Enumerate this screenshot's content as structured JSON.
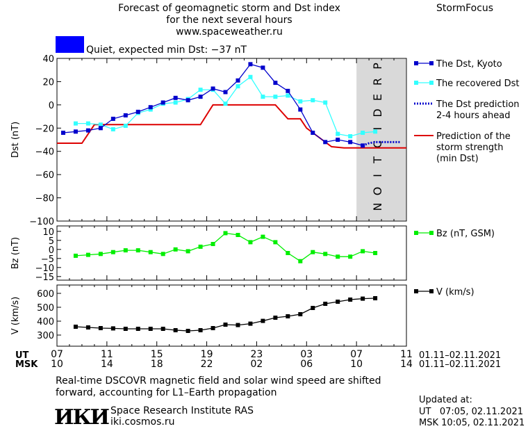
{
  "header": {
    "title_line1": "Forecast of geomagnetic storm and Dst index",
    "title_line2": "for the next several hours",
    "url": "www.spaceweather.ru",
    "brand": "StormFocus"
  },
  "status": {
    "color": "#0000ff",
    "text": "Quiet, expected min Dst: −37 nT"
  },
  "colors": {
    "dst_kyoto": "#0000cc",
    "dst_recovered": "#33ffff",
    "dst_prediction": "#0000cc",
    "storm_strength": "#dd0000",
    "bz": "#00ee00",
    "v": "#000000",
    "prediction_band": "#d9d9d9"
  },
  "chart_data": [
    {
      "type": "line",
      "panel": "dst",
      "ylabel": "Dst (nT)",
      "xlim": [
        7,
        35
      ],
      "ylim": [
        -100,
        40
      ],
      "yticks": [
        40,
        20,
        0,
        -20,
        -40,
        -60,
        -80,
        -100
      ],
      "prediction_label": "PREDICTION",
      "prediction_range": [
        7.0,
        11.0
      ],
      "series": [
        {
          "name": "The Dst, Kyoto",
          "style": "line-square",
          "x": [
            7.5,
            8.5,
            9.5,
            10.5,
            11.5,
            12.5,
            13.5,
            14.5,
            15.5,
            16.5,
            17.5,
            18.5,
            19.5,
            20.5,
            21.5,
            22.5,
            23.5,
            24.5,
            25.5,
            26.5,
            27.5,
            28.5,
            29.5,
            30.5,
            31.5
          ],
          "y": [
            -24,
            -23,
            -22,
            -20,
            -12,
            -9,
            -6,
            -2,
            2,
            6,
            4,
            7,
            14,
            11,
            21,
            35,
            32,
            19,
            12,
            -4,
            -24,
            -32,
            -30,
            -32,
            -35
          ]
        },
        {
          "name": "The recovered Dst",
          "style": "line-square",
          "x": [
            8.5,
            9.5,
            10.5,
            11.5,
            12.5,
            13.5,
            14.5,
            15.5,
            16.5,
            17.5,
            18.5,
            19.5,
            20.5,
            21.5,
            22.5,
            23.5,
            24.5,
            25.5,
            26.5,
            27.5,
            28.5,
            29.5,
            30.5,
            31.5,
            32.5
          ],
          "y": [
            -16,
            -16,
            -17,
            -21,
            -18,
            -7,
            -4,
            1,
            2,
            5,
            13,
            13,
            1,
            16,
            24,
            7,
            7,
            8,
            3,
            4,
            2,
            -25,
            -27,
            -24,
            -23
          ]
        },
        {
          "name": "The Dst prediction\n2-4 hours ahead",
          "style": "dotted",
          "x": [
            31.5,
            32.0,
            32.5,
            33.0,
            33.5,
            34.0,
            34.5
          ],
          "y": [
            -35,
            -33,
            -32,
            -32,
            -32,
            -32,
            -32
          ]
        },
        {
          "name": "Prediction of the\nstorm strength\n(min Dst)",
          "style": "step",
          "x": [
            7.0,
            9.0,
            10.0,
            18.5,
            19.5,
            24.5,
            25.5,
            26.5,
            27.0,
            29.0,
            30.0,
            35.0
          ],
          "y": [
            -33,
            -33,
            -17,
            -17,
            0,
            0,
            -12,
            -12,
            -20,
            -36,
            -37,
            -37
          ]
        }
      ]
    },
    {
      "type": "line",
      "panel": "bz",
      "ylabel": "Bz (nT)",
      "ylim": [
        -17,
        13
      ],
      "yticks": [
        10,
        5,
        0,
        -5,
        -10,
        -15
      ],
      "series": [
        {
          "name": "Bz (nT, GSM)",
          "style": "line-square",
          "x": [
            8.5,
            9.5,
            10.5,
            11.5,
            12.5,
            13.5,
            14.5,
            15.5,
            16.5,
            17.5,
            18.5,
            19.5,
            20.5,
            21.5,
            22.5,
            23.5,
            24.5,
            25.5,
            26.5,
            27.5,
            28.5,
            29.5,
            30.5,
            31.5,
            32.5
          ],
          "y": [
            -3.5,
            -3,
            -2.5,
            -1.5,
            -0.5,
            -0.5,
            -1.5,
            -2.5,
            0,
            -1,
            1.5,
            3,
            9,
            8,
            4,
            7,
            4,
            -2,
            -6.5,
            -1.5,
            -2.5,
            -4,
            -4,
            -1,
            -2
          ]
        }
      ]
    },
    {
      "type": "line",
      "panel": "v",
      "ylabel": "V (km/s)",
      "ylim": [
        220,
        660
      ],
      "yticks": [
        600,
        500,
        400,
        300
      ],
      "series": [
        {
          "name": "V (km/s)",
          "style": "line-square",
          "x": [
            8.5,
            9.5,
            10.5,
            11.5,
            12.5,
            13.5,
            14.5,
            15.5,
            16.5,
            17.5,
            18.5,
            19.5,
            20.5,
            21.5,
            22.5,
            23.5,
            24.5,
            25.5,
            26.5,
            27.5,
            28.5,
            29.5,
            30.5,
            31.5,
            32.5
          ],
          "y": [
            360,
            355,
            350,
            348,
            345,
            345,
            345,
            345,
            335,
            330,
            335,
            350,
            375,
            372,
            382,
            402,
            425,
            435,
            450,
            495,
            525,
            540,
            555,
            562,
            565
          ]
        }
      ]
    }
  ],
  "time_axis": {
    "ut_label": "UT",
    "msk_label": "MSK",
    "ut_ticks": [
      "07",
      "11",
      "15",
      "19",
      "23",
      "03",
      "07",
      "11"
    ],
    "msk_ticks": [
      "10",
      "14",
      "18",
      "22",
      "02",
      "06",
      "10",
      "14"
    ],
    "ut_range": "01.11–02.11.2021",
    "msk_range": "01.11–02.11.2021"
  },
  "footer": {
    "note_line1": "Real-time DSCOVR magnetic field and solar wind speed are shifted",
    "note_line2": "forward, accounting for L1–Earth propagation",
    "logo": "ИКИ",
    "institute": "Space Research Institute RAS",
    "site": "iki.cosmos.ru",
    "updated_label": "Updated at:",
    "updated_ut": "UT   07:05, 02.11.2021",
    "updated_msk": "MSK 10:05, 02.11.2021"
  }
}
